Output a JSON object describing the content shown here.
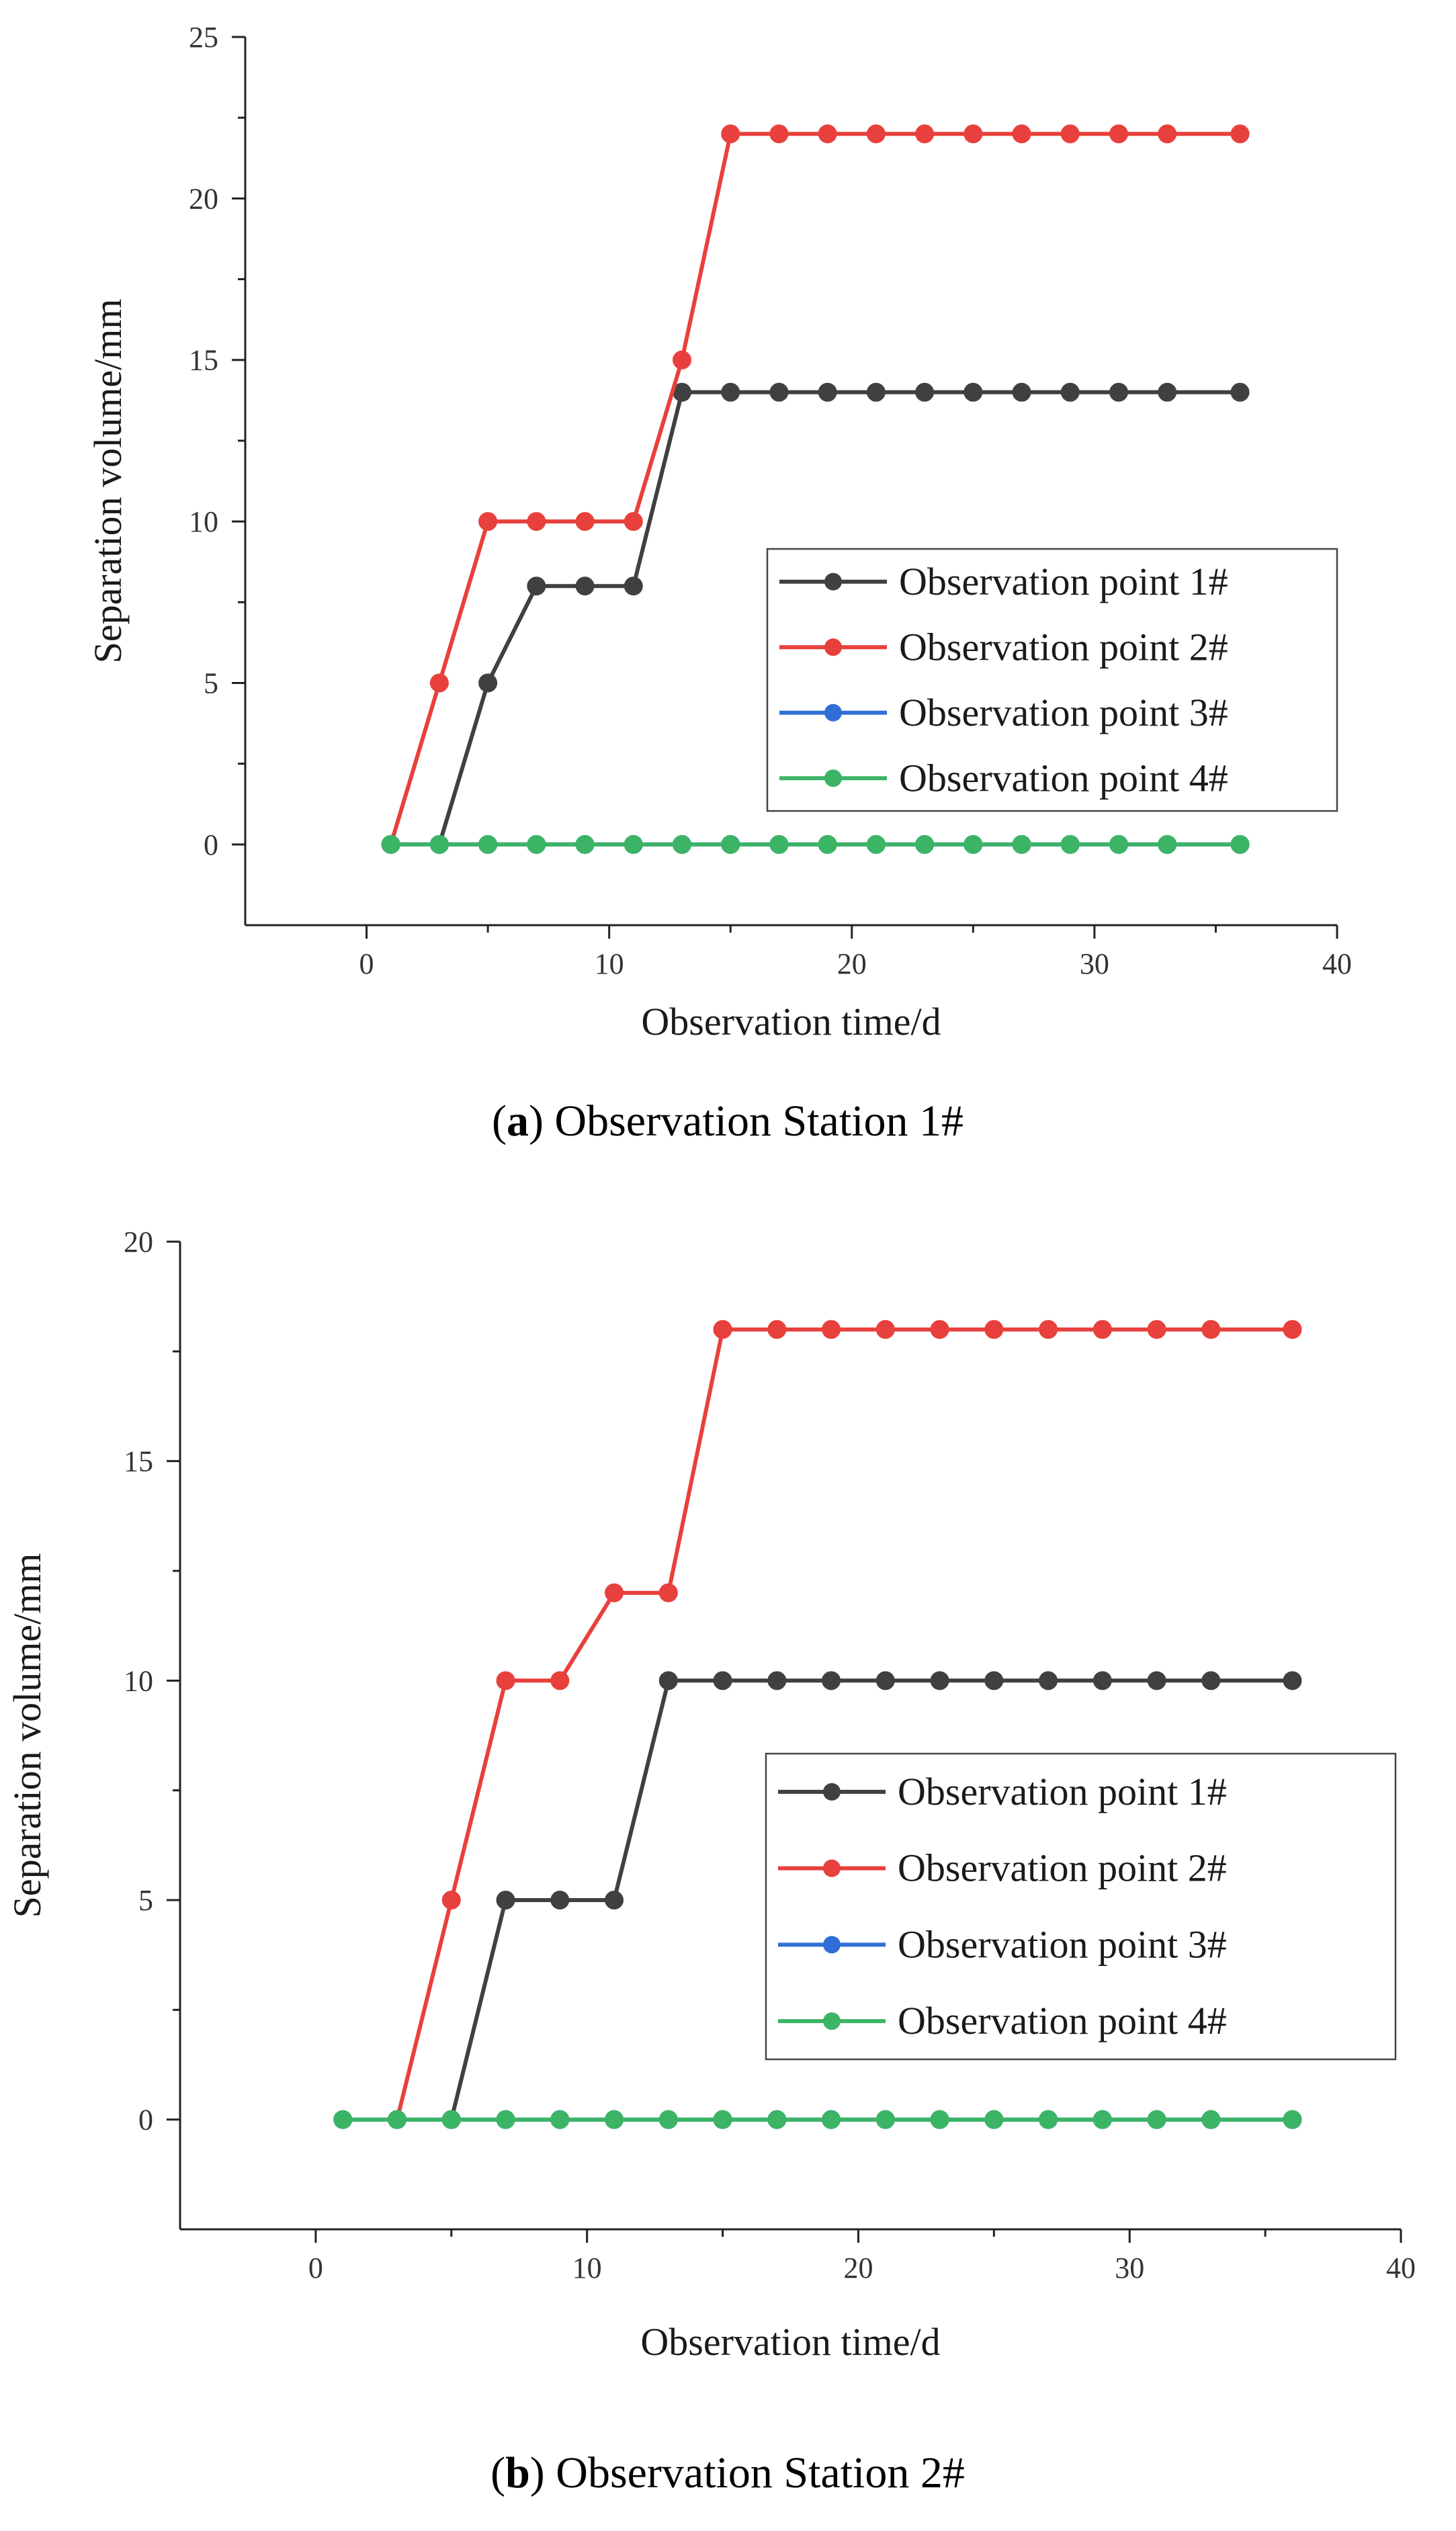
{
  "figures": [
    {
      "caption_letter": "a",
      "caption_rest": " Observation Station 1#",
      "caption_open": "(",
      "caption_close": ")"
    },
    {
      "caption_letter": "b",
      "caption_rest": " Observation Station 2#",
      "caption_open": "(",
      "caption_close": ")"
    }
  ],
  "chart_data": [
    {
      "type": "line",
      "title": "",
      "xlabel": "Observation time/d",
      "ylabel": "Separation volume/mm",
      "xlim": [
        -5,
        40
      ],
      "ylim": [
        -2.5,
        25
      ],
      "xticks": [
        0,
        10,
        20,
        30,
        40
      ],
      "yticks": [
        0,
        5,
        10,
        15,
        20,
        25
      ],
      "grid": false,
      "legend_position": "right",
      "series": [
        {
          "name": "Observation point 1#",
          "color": "#404040",
          "x": [
            3,
            5,
            7,
            9,
            11,
            13,
            15,
            17,
            19,
            21,
            23,
            25,
            27,
            29,
            31,
            33,
            36
          ],
          "y": [
            0,
            5,
            8,
            8,
            8,
            14,
            14,
            14,
            14,
            14,
            14,
            14,
            14,
            14,
            14,
            14,
            14
          ]
        },
        {
          "name": "Observation point 2#",
          "color": "#e8403c",
          "x": [
            1,
            3,
            5,
            7,
            9,
            11,
            13,
            15,
            17,
            19,
            21,
            23,
            25,
            27,
            29,
            31,
            33,
            36
          ],
          "y": [
            0,
            5,
            10,
            10,
            10,
            10,
            15,
            22,
            22,
            22,
            22,
            22,
            22,
            22,
            22,
            22,
            22,
            22
          ]
        },
        {
          "name": "Observation point 3#",
          "color": "#2f6fd6",
          "x": [
            1,
            3,
            5,
            7,
            9,
            11,
            13,
            15,
            17,
            19,
            21,
            23,
            25,
            27,
            29,
            31,
            33,
            36
          ],
          "y": [
            0,
            0,
            0,
            0,
            0,
            0,
            0,
            0,
            0,
            0,
            0,
            0,
            0,
            0,
            0,
            0,
            0,
            0
          ]
        },
        {
          "name": "Observation point 4#",
          "color": "#3cb466",
          "x": [
            1,
            3,
            5,
            7,
            9,
            11,
            13,
            15,
            17,
            19,
            21,
            23,
            25,
            27,
            29,
            31,
            33,
            36
          ],
          "y": [
            0,
            0,
            0,
            0,
            0,
            0,
            0,
            0,
            0,
            0,
            0,
            0,
            0,
            0,
            0,
            0,
            0,
            0
          ]
        }
      ]
    },
    {
      "type": "line",
      "title": "",
      "xlabel": "Observation time/d",
      "ylabel": "Separation volume/mm",
      "xlim": [
        -5,
        40
      ],
      "ylim": [
        -2.5,
        20
      ],
      "xticks": [
        0,
        10,
        20,
        30,
        40
      ],
      "yticks": [
        0,
        5,
        10,
        15,
        20
      ],
      "grid": false,
      "legend_position": "right",
      "series": [
        {
          "name": "Observation point 1#",
          "color": "#404040",
          "x": [
            5,
            7,
            9,
            11,
            13,
            15,
            17,
            19,
            21,
            23,
            25,
            27,
            29,
            31,
            33,
            36
          ],
          "y": [
            0,
            5,
            5,
            5,
            10,
            10,
            10,
            10,
            10,
            10,
            10,
            10,
            10,
            10,
            10,
            10
          ]
        },
        {
          "name": "Observation point 2#",
          "color": "#e8403c",
          "x": [
            3,
            5,
            7,
            9,
            11,
            13,
            15,
            17,
            19,
            21,
            23,
            25,
            27,
            29,
            31,
            33,
            36
          ],
          "y": [
            0,
            5,
            10,
            10,
            12,
            12,
            18,
            18,
            18,
            18,
            18,
            18,
            18,
            18,
            18,
            18,
            18
          ]
        },
        {
          "name": "Observation point 3#",
          "color": "#2f6fd6",
          "x": [
            1,
            3,
            5,
            7,
            9,
            11,
            13,
            15,
            17,
            19,
            21,
            23,
            25,
            27,
            29,
            31,
            33,
            36
          ],
          "y": [
            0,
            0,
            0,
            0,
            0,
            0,
            0,
            0,
            0,
            0,
            0,
            0,
            0,
            0,
            0,
            0,
            0,
            0
          ]
        },
        {
          "name": "Observation point 4#",
          "color": "#3cb466",
          "x": [
            1,
            3,
            5,
            7,
            9,
            11,
            13,
            15,
            17,
            19,
            21,
            23,
            25,
            27,
            29,
            31,
            33,
            36
          ],
          "y": [
            0,
            0,
            0,
            0,
            0,
            0,
            0,
            0,
            0,
            0,
            0,
            0,
            0,
            0,
            0,
            0,
            0,
            0
          ]
        }
      ]
    }
  ]
}
